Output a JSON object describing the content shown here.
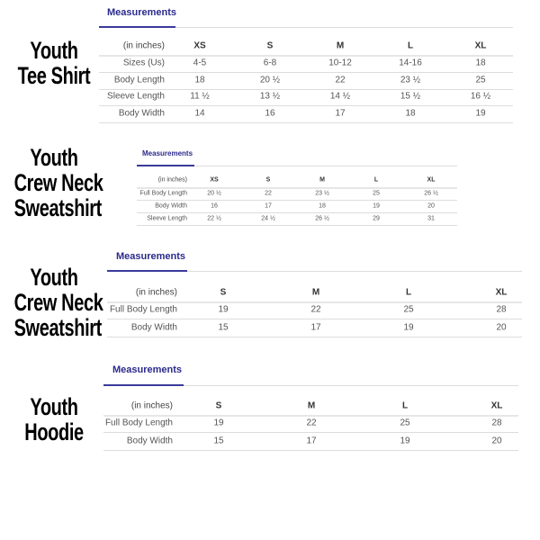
{
  "sections": [
    {
      "heading": [
        "Youth",
        "Tee Shirt"
      ],
      "tab_label": "Measurements",
      "unit_label": "(in inches)",
      "columns": [
        "XS",
        "S",
        "M",
        "L",
        "XL"
      ],
      "rows": [
        {
          "label": "Sizes (Us)",
          "values": [
            "4-5",
            "6-8",
            "10-12",
            "14-16",
            "18"
          ]
        },
        {
          "label": "Body Length",
          "values": [
            "18",
            "20 ½",
            "22",
            "23 ½",
            "25"
          ]
        },
        {
          "label": "Sleeve Length",
          "values": [
            "11 ½",
            "13 ½",
            "14 ½",
            "15 ½",
            "16 ½"
          ]
        },
        {
          "label": "Body Width",
          "values": [
            "14",
            "16",
            "17",
            "18",
            "19"
          ]
        }
      ]
    },
    {
      "heading": [
        "Youth",
        "Crew Neck",
        "Sweatshirt"
      ],
      "tab_label": "Measurements",
      "unit_label": "(in inches)",
      "columns": [
        "XS",
        "S",
        "M",
        "L",
        "XL"
      ],
      "rows": [
        {
          "label": "Full Body Length",
          "values": [
            "20 ½",
            "22",
            "23 ½",
            "25",
            "26 ½"
          ]
        },
        {
          "label": "Body Width",
          "values": [
            "16",
            "17",
            "18",
            "19",
            "20"
          ]
        },
        {
          "label": "Sleeve Length",
          "values": [
            "22 ½",
            "24 ½",
            "26 ½",
            "29",
            "31"
          ]
        }
      ]
    },
    {
      "heading": [
        "Youth",
        "Crew Neck",
        "Sweatshirt"
      ],
      "tab_label": "Measurements",
      "unit_label": "(in inches)",
      "columns": [
        "S",
        "M",
        "L",
        "XL"
      ],
      "rows": [
        {
          "label": "Full Body Length",
          "values": [
            "19",
            "22",
            "25",
            "28"
          ]
        },
        {
          "label": "Body Width",
          "values": [
            "15",
            "17",
            "19",
            "20"
          ]
        }
      ]
    },
    {
      "heading": [
        "Youth",
        "Hoodie"
      ],
      "tab_label": "Measurements",
      "unit_label": "(in inches)",
      "columns": [
        "S",
        "M",
        "L",
        "XL"
      ],
      "rows": [
        {
          "label": "Full Body Length",
          "values": [
            "19",
            "22",
            "25",
            "28"
          ]
        },
        {
          "label": "Body Width",
          "values": [
            "15",
            "17",
            "19",
            "20"
          ]
        }
      ]
    }
  ],
  "colors": {
    "tab_accent": "#2b2a8c",
    "text": "#555555"
  }
}
